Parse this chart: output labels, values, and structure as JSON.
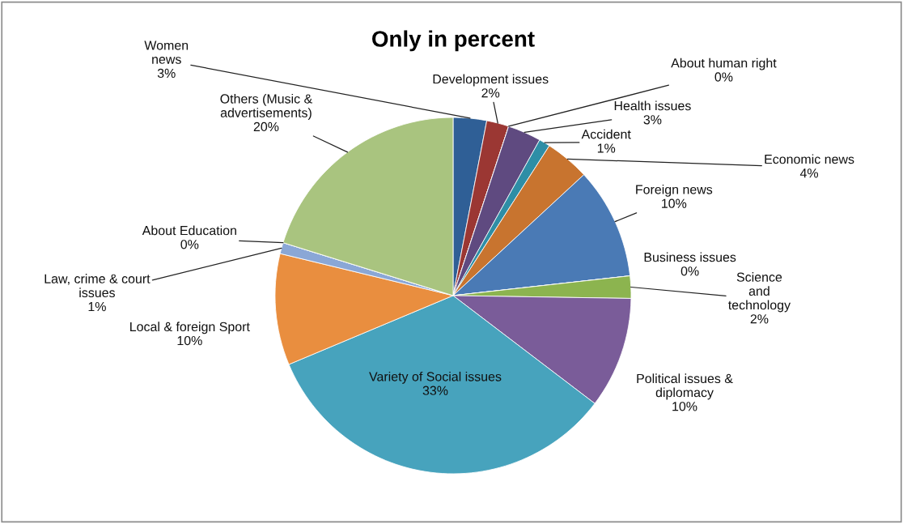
{
  "chart_data": {
    "type": "pie",
    "title": "Only in percent",
    "categories": [
      "Women\nnews",
      "Development issues",
      "About human right",
      "Health issues",
      "Accident",
      "Economic news",
      "Foreign news",
      "Business issues",
      "Science\nand\ntechnology",
      "Political issues &\ndiplomacy",
      "Variety of Social issues",
      "Local & foreign Sport",
      "Law, crime & court\nissues",
      "About Education",
      "Others (Music &\nadvertisements)"
    ],
    "values": [
      3,
      2,
      0,
      3,
      1,
      4,
      10,
      0,
      2,
      10,
      33,
      10,
      1,
      0,
      20
    ],
    "value_labels": [
      "3%",
      "2%",
      "0%",
      "3%",
      "1%",
      "4%",
      "10%",
      "0%",
      "2%",
      "10%",
      "33%",
      "10%",
      "1%",
      "0%",
      "20%"
    ],
    "colors": [
      "#2f5f96",
      "#9b3733",
      "#7b9a3d",
      "#5f4a80",
      "#2e8ea6",
      "#c8742f",
      "#4a7ab5",
      "#c0504d",
      "#8cb44f",
      "#7a5c99",
      "#47a3bd",
      "#e98e3f",
      "#8aa7d6",
      "#d9736f",
      "#a9c47f"
    ]
  }
}
